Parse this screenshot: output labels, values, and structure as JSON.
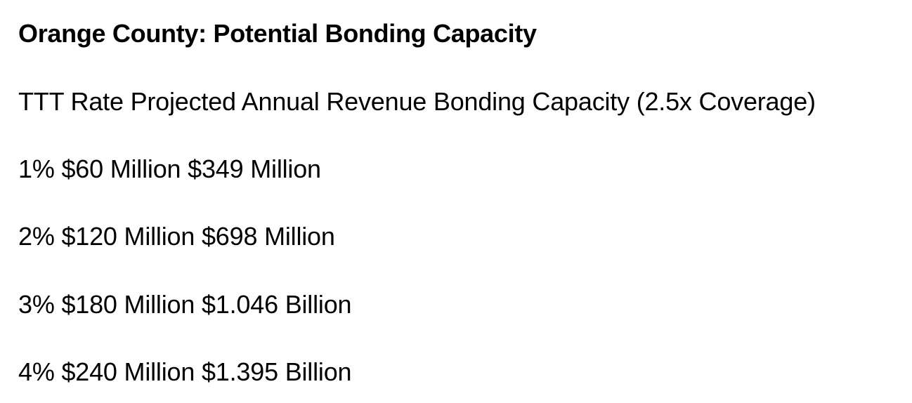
{
  "document": {
    "title": "Orange County: Potential Bonding Capacity",
    "table": {
      "headers": [
        "TTT Rate",
        "Projected Annual Revenue",
        "Bonding Capacity (2.5x Coverage)"
      ],
      "rows": [
        [
          "1%",
          "$60 Million",
          "$349 Million"
        ],
        [
          "2%",
          "$120 Million",
          "$698 Million"
        ],
        [
          "3%",
          "$180 Million",
          "$1.046 Billion"
        ],
        [
          "4%",
          "$240 Million",
          "$1.395 Billion"
        ]
      ]
    }
  }
}
